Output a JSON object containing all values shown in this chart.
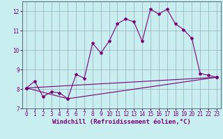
{
  "xlabel": "Windchill (Refroidissement éolien,°C)",
  "background_color": "#c8eef0",
  "grid_color": "#99aabb",
  "line_color": "#770077",
  "xlim": [
    -0.5,
    23.5
  ],
  "ylim": [
    7,
    12.5
  ],
  "yticks": [
    7,
    8,
    9,
    10,
    11,
    12
  ],
  "xticks": [
    0,
    1,
    2,
    3,
    4,
    5,
    6,
    7,
    8,
    9,
    10,
    11,
    12,
    13,
    14,
    15,
    16,
    17,
    18,
    19,
    20,
    21,
    22,
    23
  ],
  "curve1_x": [
    0,
    1,
    2,
    3,
    4,
    5,
    6,
    7,
    8,
    9,
    10,
    11,
    12,
    13,
    14,
    15,
    16,
    17,
    18,
    19,
    20,
    21,
    22,
    23
  ],
  "curve1_y": [
    8.05,
    8.4,
    7.6,
    7.85,
    7.8,
    7.5,
    8.75,
    8.55,
    10.35,
    9.85,
    10.45,
    11.35,
    11.6,
    11.45,
    10.45,
    12.1,
    11.85,
    12.1,
    11.35,
    11.05,
    10.6,
    8.8,
    8.7,
    8.6
  ],
  "curve2_x": [
    0,
    23
  ],
  "curve2_y": [
    8.05,
    8.6
  ],
  "curve3_x": [
    0,
    5,
    23
  ],
  "curve3_y": [
    8.05,
    7.5,
    8.6
  ],
  "marker_style": "*",
  "marker_size": 3,
  "line_width": 0.8,
  "tick_fontsize": 5.5,
  "xlabel_fontsize": 6.5
}
